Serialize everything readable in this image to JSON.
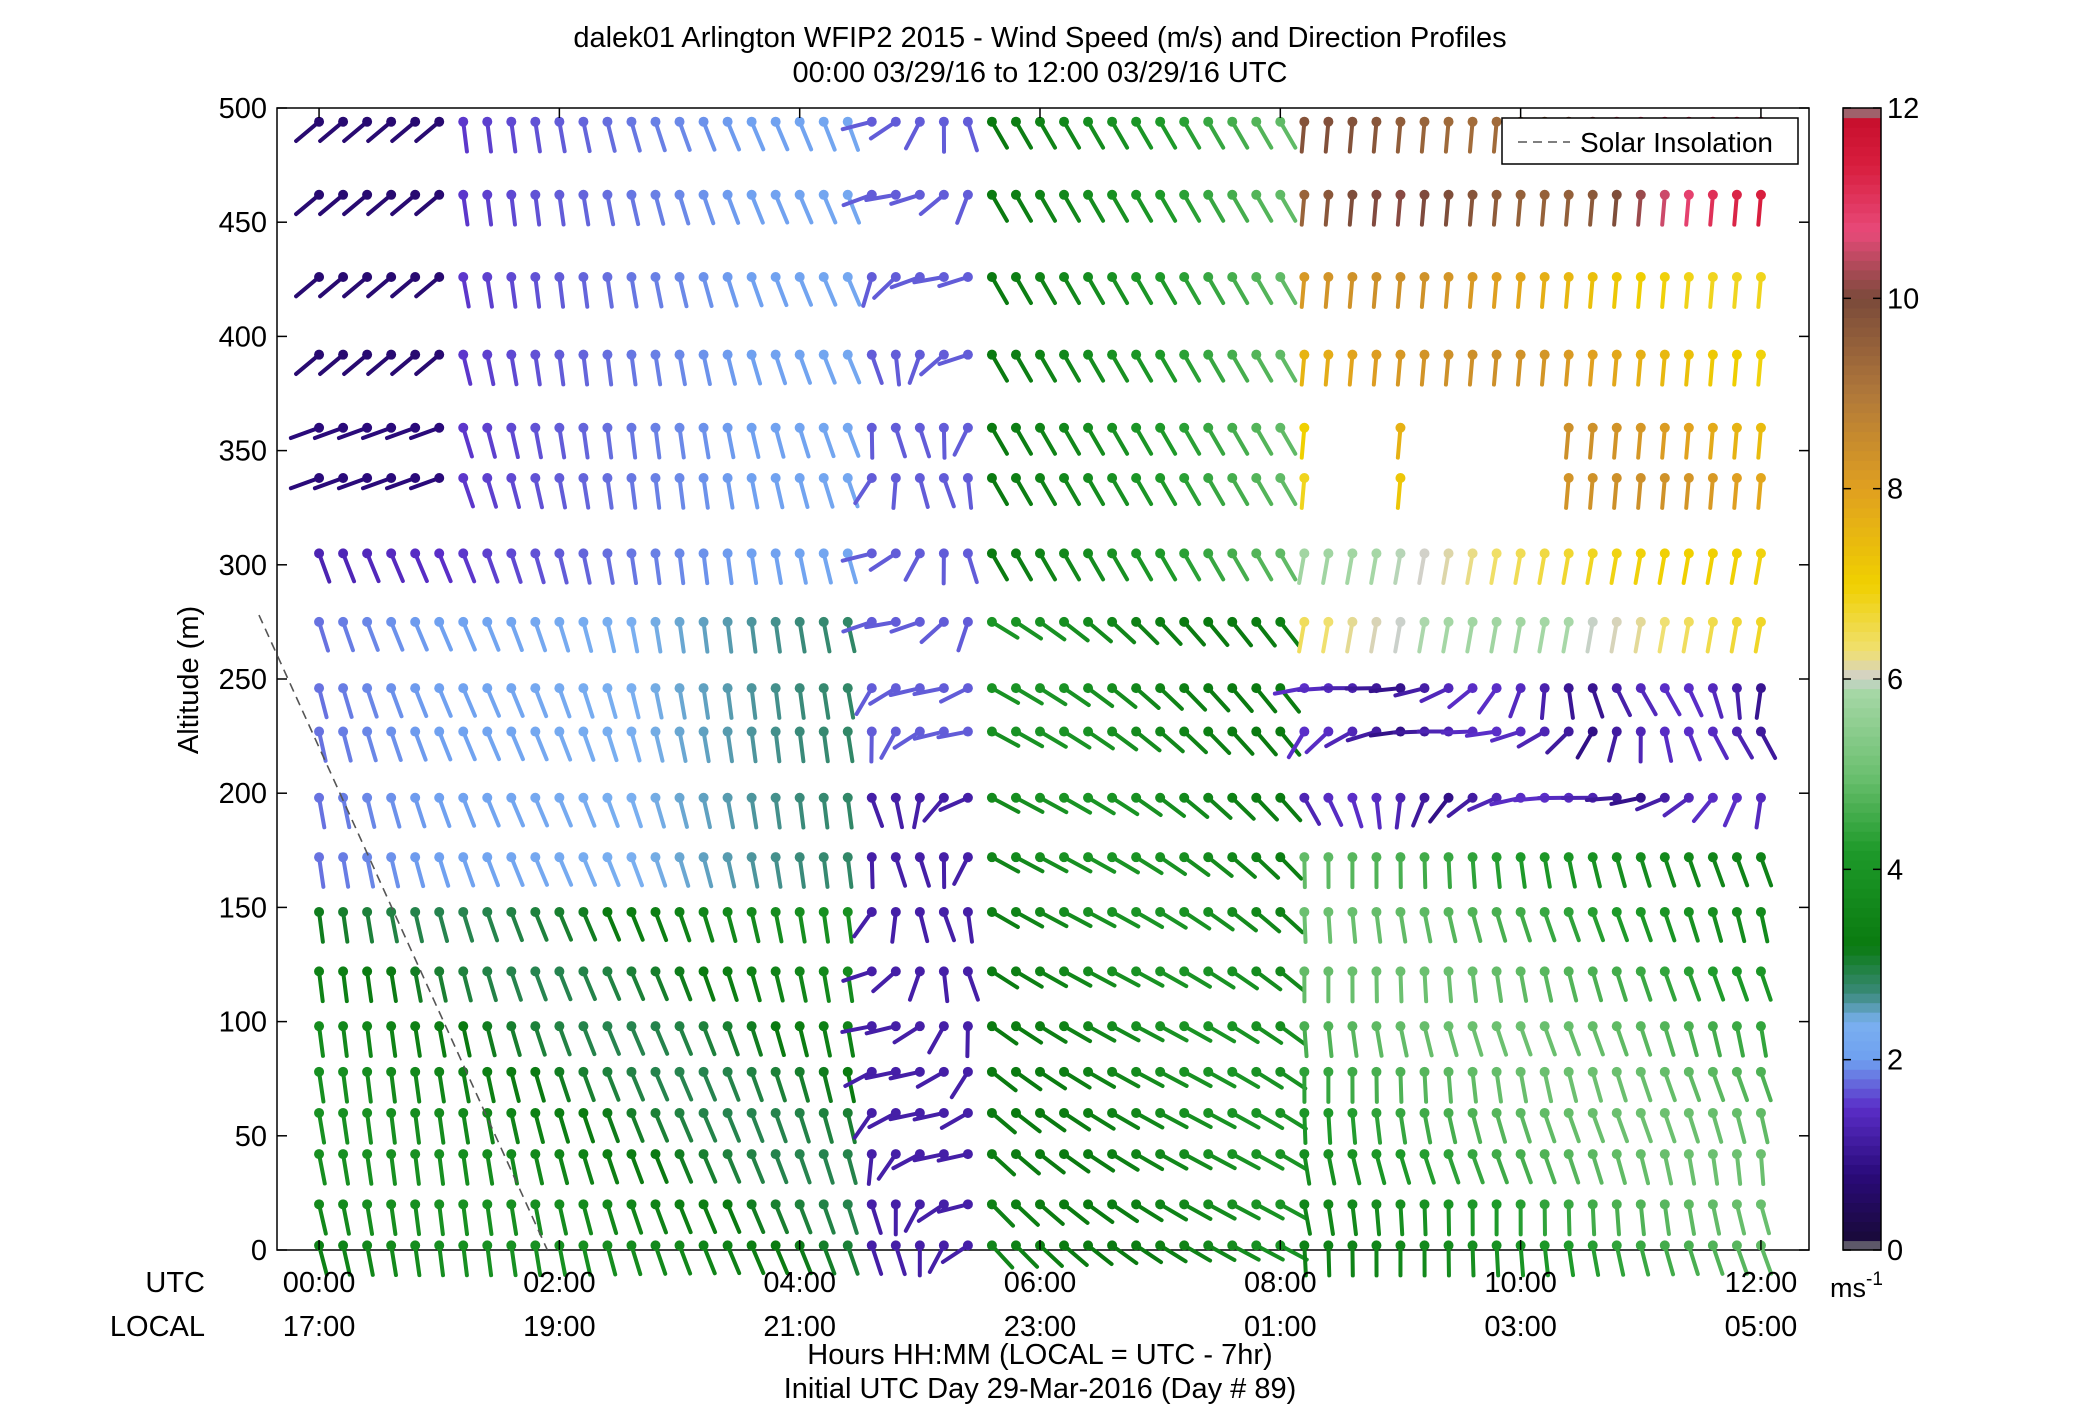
{
  "chart_data": {
    "type": "scatter",
    "title": "dalek01 Arlington WFIP2 2015 - Wind Speed (m/s) and Direction Profiles",
    "subtitle": "00:00 03/29/16 to 12:00 03/29/16  UTC",
    "ylabel": "Altitude (m)",
    "xlabel_line1": "Hours HH:MM  (LOCAL = UTC - 7hr)",
    "xlabel_line2": "Initial UTC Day 29-Mar-2016 (Day # 89)",
    "ylim": [
      0,
      500
    ],
    "xlim_hours": [
      -0.35,
      12.4
    ],
    "yticks": [
      0,
      50,
      100,
      150,
      200,
      250,
      300,
      350,
      400,
      450,
      500
    ],
    "xticks_hours": [
      0,
      2,
      4,
      6,
      8,
      10,
      12
    ],
    "utc_label": "UTC",
    "local_label": "LOCAL",
    "utc_ticks": [
      "00:00",
      "02:00",
      "04:00",
      "06:00",
      "08:00",
      "10:00",
      "12:00"
    ],
    "local_ticks": [
      "17:00",
      "19:00",
      "21:00",
      "23:00",
      "01:00",
      "03:00",
      "05:00"
    ],
    "legend": {
      "label": "Solar Insolation",
      "placement": "top-right",
      "style": "dashed"
    },
    "solar_insolation": {
      "hours": [
        -0.5,
        1.9
      ],
      "altitude": [
        278,
        0
      ]
    },
    "colorbar": {
      "min": 0,
      "max": 12,
      "ticks": [
        0,
        2,
        4,
        6,
        8,
        10,
        12
      ],
      "unit_label": "ms",
      "unit_exp": "-1"
    },
    "altitudes": [
      2,
      20,
      42,
      60,
      78,
      98,
      122,
      148,
      172,
      198,
      227,
      246,
      275,
      305,
      338,
      360,
      392,
      426,
      462,
      494
    ],
    "time_step_hours": 0.2
  }
}
